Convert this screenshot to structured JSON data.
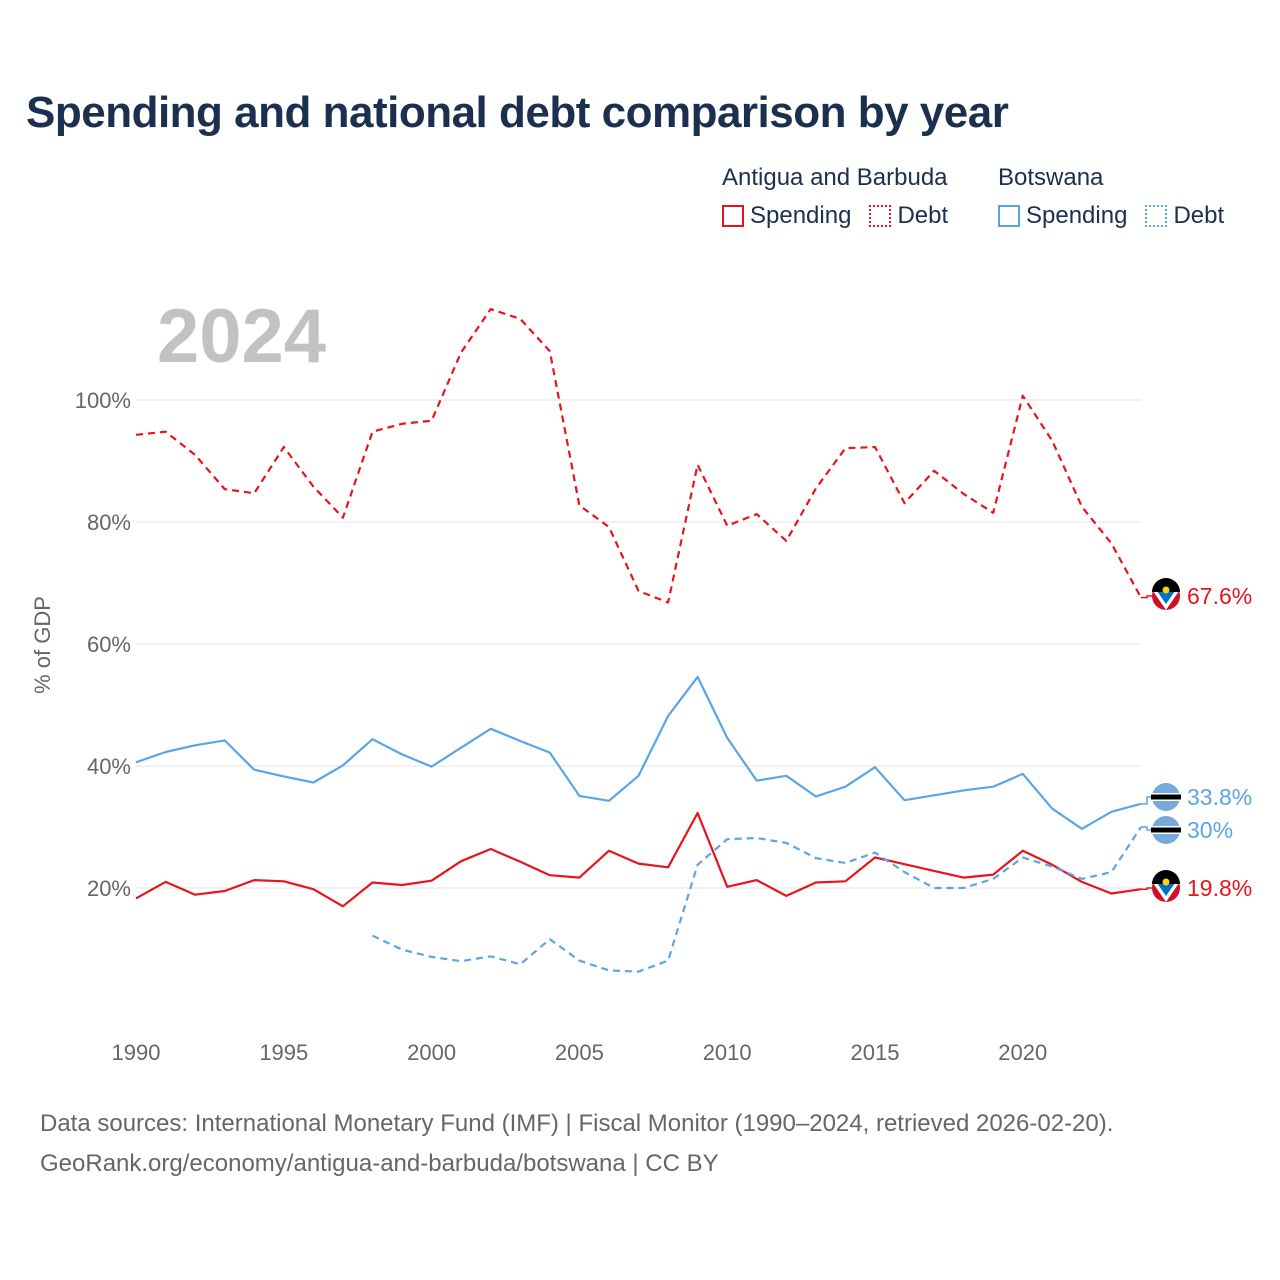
{
  "title": "Spending and national debt comparison by year",
  "year_label": "2024",
  "legend": [
    {
      "country": "Antigua and Barbuda",
      "items": [
        {
          "label": "Spending",
          "style": "solid",
          "color": "#e8141b"
        },
        {
          "label": "Debt",
          "style": "dotted",
          "color": "#e8141b"
        }
      ]
    },
    {
      "country": "Botswana",
      "items": [
        {
          "label": "Spending",
          "style": "solid",
          "color": "#5aa5e6"
        },
        {
          "label": "Debt",
          "style": "dotted",
          "color": "#5aa5e6"
        }
      ]
    }
  ],
  "footer": {
    "line1": "Data sources: International Monetary Fund (IMF) | Fiscal Monitor (1990–2024, retrieved 2026-02-20).",
    "line2": "GeoRank.org/economy/antigua-and-barbuda/botswana | CC BY"
  },
  "chart_data": {
    "type": "line",
    "ylabel": "% of GDP",
    "xlabel": "",
    "xlim": [
      1990,
      2024
    ],
    "ylim": [
      0,
      120
    ],
    "x_ticks": [
      1990,
      1995,
      2000,
      2005,
      2010,
      2015,
      2020
    ],
    "y_ticks": [
      {
        "value": 20,
        "label": "20%"
      },
      {
        "value": 40,
        "label": "40%"
      },
      {
        "value": 60,
        "label": "60%"
      },
      {
        "value": 80,
        "label": "80%"
      },
      {
        "value": 100,
        "label": "100%"
      }
    ],
    "series": [
      {
        "name": "Antigua and Barbuda Debt",
        "color": "#e8141b",
        "dash": true,
        "end_label": "67.6%",
        "flag": "antigua",
        "x": [
          1990,
          1991,
          1992,
          1993,
          1994,
          1995,
          1996,
          1997,
          1998,
          1999,
          2000,
          2001,
          2002,
          2003,
          2004,
          2005,
          2006,
          2007,
          2008,
          2009,
          2010,
          2011,
          2012,
          2013,
          2014,
          2015,
          2016,
          2017,
          2018,
          2019,
          2020,
          2021,
          2022,
          2023,
          2024
        ],
        "values": [
          94.3,
          94.8,
          91,
          85.4,
          84.7,
          92.3,
          85.8,
          80.7,
          94.8,
          96.1,
          96.6,
          107.8,
          114.9,
          113.3,
          108,
          82.7,
          79.2,
          68.7,
          66.8,
          89.4,
          79.4,
          81.3,
          76.9,
          85.5,
          92.1,
          92.3,
          83.1,
          88.4,
          84.6,
          81.5,
          100.7,
          93.3,
          82.5,
          76.5,
          67.6
        ]
      },
      {
        "name": "Antigua and Barbuda Spending",
        "color": "#e8141b",
        "dash": false,
        "end_label": "19.8%",
        "flag": "antigua",
        "x": [
          1990,
          1991,
          1992,
          1993,
          1994,
          1995,
          1996,
          1997,
          1998,
          1999,
          2000,
          2001,
          2002,
          2003,
          2004,
          2005,
          2006,
          2007,
          2008,
          2009,
          2010,
          2011,
          2012,
          2013,
          2014,
          2015,
          2016,
          2017,
          2018,
          2019,
          2020,
          2021,
          2022,
          2023,
          2024
        ],
        "values": [
          18.3,
          21,
          18.9,
          19.5,
          21.3,
          21.1,
          19.8,
          17,
          20.9,
          20.5,
          21.2,
          24.4,
          26.4,
          24.3,
          22.1,
          21.7,
          26.1,
          24,
          23.4,
          32.3,
          20.2,
          21.3,
          18.7,
          20.9,
          21.1,
          25,
          23.9,
          22.8,
          21.7,
          22.2,
          26.1,
          23.8,
          21,
          19.1,
          19.8
        ]
      },
      {
        "name": "Botswana Spending",
        "color": "#5aa5e6",
        "dash": false,
        "end_label": "33.8%",
        "flag": "botswana",
        "x": [
          1990,
          1991,
          1992,
          1993,
          1994,
          1995,
          1996,
          1997,
          1998,
          1999,
          2000,
          2001,
          2002,
          2003,
          2004,
          2005,
          2006,
          2007,
          2008,
          2009,
          2010,
          2011,
          2012,
          2013,
          2014,
          2015,
          2016,
          2017,
          2018,
          2019,
          2020,
          2021,
          2022,
          2023,
          2024
        ],
        "values": [
          40.6,
          42.3,
          43.4,
          44.2,
          39.4,
          38.3,
          37.3,
          40.1,
          44.4,
          41.9,
          39.9,
          43,
          46.1,
          44.1,
          42.2,
          35.1,
          34.3,
          38.4,
          48.2,
          54.6,
          44.6,
          37.6,
          38.4,
          35,
          36.6,
          39.8,
          34.4,
          35.2,
          36,
          36.6,
          38.7,
          33,
          29.7,
          32.5,
          33.8
        ]
      },
      {
        "name": "Botswana Debt",
        "color": "#5aa5e6",
        "dash": true,
        "end_label": "30%",
        "flag": "botswana",
        "x": [
          1998,
          1999,
          2000,
          2001,
          2002,
          2003,
          2004,
          2005,
          2006,
          2007,
          2008,
          2009,
          2010,
          2011,
          2012,
          2013,
          2014,
          2015,
          2016,
          2017,
          2018,
          2019,
          2020,
          2021,
          2022,
          2023,
          2024
        ],
        "values": [
          12.2,
          9.9,
          8.7,
          8,
          8.8,
          7.5,
          11.6,
          8.1,
          6.5,
          6.3,
          8.1,
          23.8,
          28,
          28.2,
          27.4,
          24.9,
          24.1,
          25.8,
          22.6,
          20,
          20,
          21.5,
          25,
          23.5,
          21.5,
          22.6,
          30
        ]
      }
    ]
  }
}
